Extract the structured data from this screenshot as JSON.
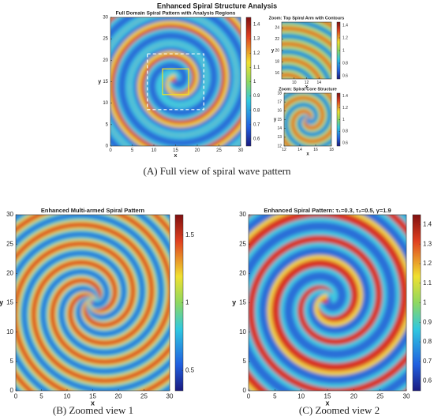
{
  "figure_title": "Enhanced Spiral Structure Analysis",
  "captions": [
    "(A) Full view of spiral wave pattern",
    "(B) Zoomed view 1",
    "(C) Zoomed view 2"
  ],
  "chart_data": [
    {
      "type": "heatmap",
      "title": "Full Domain Spiral Pattern with Analysis Regions",
      "x_label": "x",
      "y_label": "y",
      "xlim": [
        0,
        30
      ],
      "xticks": [
        0,
        5,
        10,
        15,
        20,
        25,
        30
      ],
      "ylim": [
        0,
        30
      ],
      "yticks": [
        0,
        5,
        10,
        15,
        20,
        25,
        30
      ],
      "clim": [
        0.55,
        1.45
      ],
      "cticks": [
        0.6,
        0.7,
        0.8,
        0.9,
        1,
        1.1,
        1.2,
        1.3,
        1.4
      ]
    },
    {
      "type": "heatmap",
      "title": "Zoom: Top Spiral Arm with Contours",
      "x_label": "x",
      "y_label": "y",
      "xlim": [
        8,
        16
      ],
      "xticks": [
        10,
        12,
        14
      ],
      "ylim": [
        15,
        25
      ],
      "yticks": [
        16,
        18,
        20,
        22,
        24
      ],
      "clim": [
        0.55,
        1.45
      ],
      "cticks": [
        0.6,
        0.8,
        1,
        1.2,
        1.4
      ]
    },
    {
      "type": "heatmap",
      "title": "Zoom: Spiral Core Structure",
      "x_label": "x",
      "y_label": "y",
      "xlim": [
        12,
        18
      ],
      "xticks": [
        12,
        14,
        16,
        18
      ],
      "ylim": [
        12,
        18
      ],
      "yticks": [
        12,
        13,
        14,
        15,
        16,
        17,
        18
      ],
      "clim": [
        0.55,
        1.45
      ],
      "cticks": [
        0.6,
        0.8,
        1,
        1.2,
        1.4
      ]
    },
    {
      "type": "heatmap",
      "title": "Enhanced Multi-armed Spiral Pattern",
      "x_label": "x",
      "y_label": "y",
      "xlim": [
        0,
        30
      ],
      "xticks": [
        0,
        5,
        10,
        15,
        20,
        25,
        30
      ],
      "ylim": [
        0,
        30
      ],
      "yticks": [
        0,
        5,
        10,
        15,
        20,
        25,
        30
      ],
      "clim": [
        0.35,
        1.65
      ],
      "cticks": [
        0.5,
        1,
        1.5
      ]
    },
    {
      "type": "heatmap",
      "title": "Enhanced Spiral Pattern: τ₁=0.3, τ₂=0.5, γ=1.9",
      "x_label": "x",
      "y_label": "y",
      "xlim": [
        0,
        30
      ],
      "xticks": [
        0,
        5,
        10,
        15,
        20,
        25,
        30
      ],
      "ylim": [
        0,
        30
      ],
      "yticks": [
        0,
        5,
        10,
        15,
        20,
        25,
        30
      ],
      "clim": [
        0.55,
        1.45
      ],
      "cticks": [
        0.6,
        0.7,
        0.8,
        0.9,
        1,
        1.1,
        1.2,
        1.3,
        1.4
      ]
    }
  ]
}
